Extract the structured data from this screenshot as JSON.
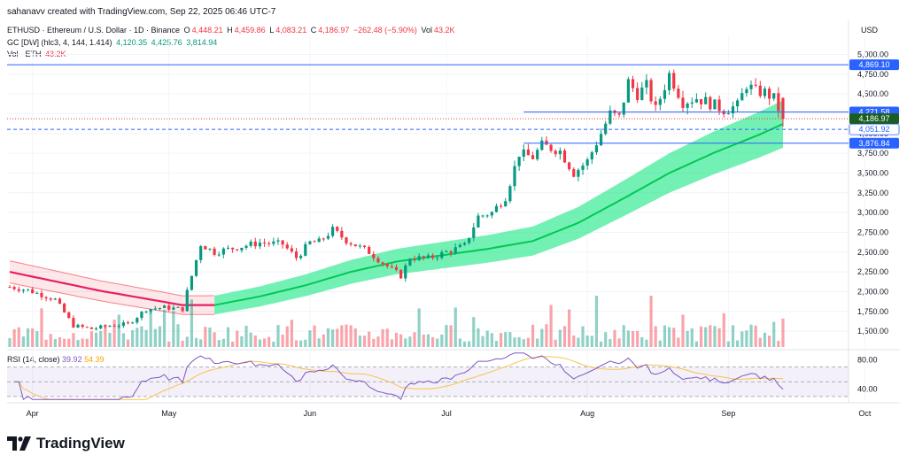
{
  "credit": "sahanavv created with TradingView.com, Sep 22, 2025 06:46 UTC-7",
  "legend": {
    "symbol": "ETHUSD · Ethereum / U.S. Dollar · 1D · Binance",
    "open_label": "O",
    "open": "4,448.21",
    "high_label": "H",
    "high": "4,459.86",
    "low_label": "L",
    "low": "4,083.21",
    "close_label": "C",
    "close": "4,186.97",
    "change": "−262.48 (−5.90%)",
    "vol_label": "Vol",
    "vol": "43.2K",
    "gc_label": "GC [DW] (hlc3, 4, 144, 1.414)",
    "gc_1": "4,120.35",
    "gc_2": "4,425.76",
    "gc_3": "3,814.94",
    "volume_label": "Vol · ETH",
    "volume_value": "43.2K",
    "rsi_label": "RSI (14, close)",
    "rsi_value": "39.92",
    "rsi_ma": "54.39"
  },
  "currency": "USD",
  "brand": "TradingView",
  "colors": {
    "up": "#089981",
    "down": "#f23645",
    "band_green": "#00e676",
    "band_red": "#f23645",
    "rsi": "#7e57c2",
    "rsi_ma": "#f7c34c",
    "hline": "#2962ff"
  },
  "chart_data": {
    "type": "candlestick",
    "price_axis": {
      "range": [
        1300,
        5240
      ],
      "ticks": [
        "5,000.00",
        "4,750.00",
        "4,500.00",
        "4,250.00",
        "4,000.00",
        "3,750.00",
        "3,500.00",
        "3,250.00",
        "3,000.00",
        "2,750.00",
        "2,500.00",
        "2,250.00",
        "2,000.00",
        "1,750.00",
        "1,500.00"
      ]
    },
    "price_labels": [
      {
        "text": "4,869.10",
        "value": 4869.1,
        "style": "line"
      },
      {
        "text": "4,271.58",
        "value": 4271.58,
        "style": "line"
      },
      {
        "text": "4,186.97",
        "value": 4186.97,
        "style": "last"
      },
      {
        "text": "4,051.92",
        "value": 4051.92,
        "style": "dashed"
      },
      {
        "text": "3,876.84",
        "value": 3876.84,
        "style": "line"
      }
    ],
    "x_axis": {
      "labels": [
        "Apr",
        "May",
        "Jun",
        "Jul",
        "Aug",
        "Sep",
        "Oct"
      ],
      "label_day_index": [
        5,
        35,
        66,
        96,
        127,
        158,
        188
      ]
    },
    "days": 175,
    "price_anchors": [
      [
        0,
        2060
      ],
      [
        4,
        2020
      ],
      [
        10,
        1900
      ],
      [
        14,
        1570
      ],
      [
        18,
        1530
      ],
      [
        22,
        1570
      ],
      [
        26,
        1590
      ],
      [
        30,
        1780
      ],
      [
        34,
        1800
      ],
      [
        38,
        1780
      ],
      [
        39,
        2000
      ],
      [
        42,
        2600
      ],
      [
        45,
        2500
      ],
      [
        50,
        2560
      ],
      [
        55,
        2620
      ],
      [
        60,
        2600
      ],
      [
        63,
        2430
      ],
      [
        66,
        2620
      ],
      [
        68,
        2630
      ],
      [
        71,
        2780
      ],
      [
        74,
        2650
      ],
      [
        79,
        2500
      ],
      [
        83,
        2320
      ],
      [
        86,
        2200
      ],
      [
        88,
        2430
      ],
      [
        92,
        2420
      ],
      [
        96,
        2500
      ],
      [
        100,
        2580
      ],
      [
        103,
        2950
      ],
      [
        106,
        3000
      ],
      [
        109,
        3200
      ],
      [
        112,
        3750
      ],
      [
        115,
        3700
      ],
      [
        117,
        3850
      ],
      [
        121,
        3780
      ],
      [
        124,
        3500
      ],
      [
        127,
        3650
      ],
      [
        130,
        4000
      ],
      [
        132,
        4250
      ],
      [
        134,
        4200
      ],
      [
        136,
        4650
      ],
      [
        138,
        4500
      ],
      [
        140,
        4600
      ],
      [
        142,
        4300
      ],
      [
        145,
        4750
      ],
      [
        148,
        4400
      ],
      [
        151,
        4450
      ],
      [
        154,
        4380
      ],
      [
        157,
        4300
      ],
      [
        160,
        4350
      ],
      [
        162,
        4620
      ],
      [
        164,
        4530
      ],
      [
        166,
        4520
      ],
      [
        168,
        4440
      ],
      [
        170,
        4186.97
      ]
    ],
    "gc_middle_anchors": [
      [
        0,
        2250
      ],
      [
        10,
        2130
      ],
      [
        20,
        2010
      ],
      [
        30,
        1910
      ],
      [
        38,
        1830
      ],
      [
        45,
        1830
      ],
      [
        55,
        1940
      ],
      [
        65,
        2080
      ],
      [
        75,
        2250
      ],
      [
        85,
        2380
      ],
      [
        95,
        2460
      ],
      [
        105,
        2540
      ],
      [
        115,
        2640
      ],
      [
        125,
        2870
      ],
      [
        135,
        3180
      ],
      [
        145,
        3500
      ],
      [
        155,
        3760
      ],
      [
        165,
        3990
      ],
      [
        170,
        4120.35
      ]
    ],
    "gc_width": {
      "upper_at_end": 4425.76,
      "lower_at_end": 3814.94
    },
    "rsi_axis": {
      "range": [
        25,
        90
      ],
      "ticks": [
        80,
        40
      ],
      "bands": [
        70,
        30
      ],
      "mid": 50
    },
    "rsi_last": 39.92,
    "rsi_ma_last": 54.39
  }
}
